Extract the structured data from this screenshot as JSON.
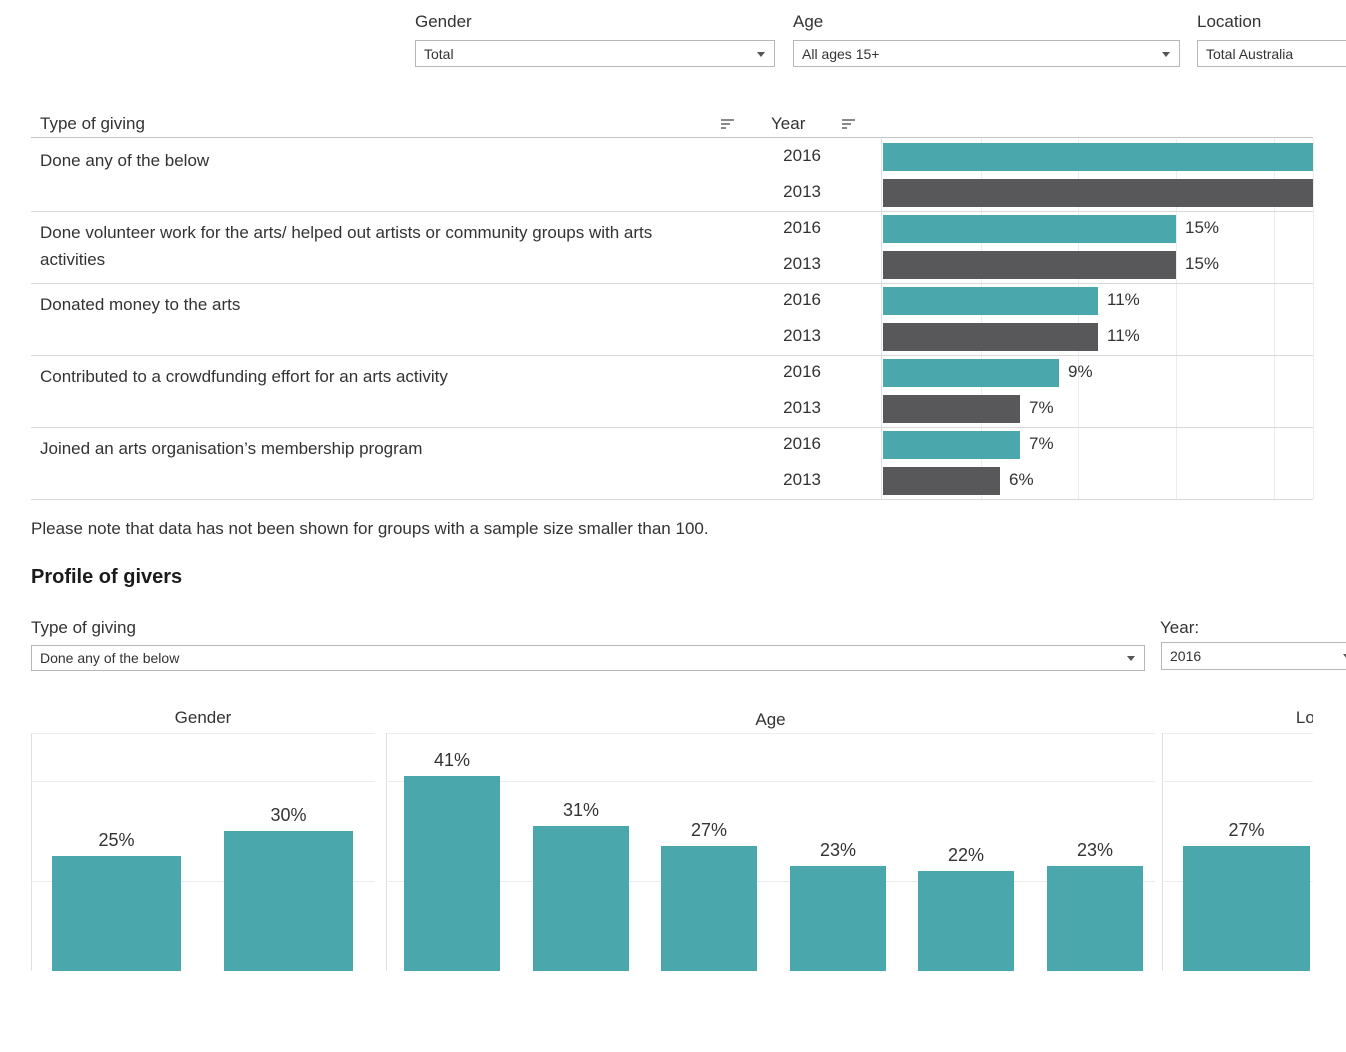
{
  "colors": {
    "teal": "#4AA8AD",
    "dark_grey": "#58585A",
    "text": "#333333",
    "gridline": "#ECECEC",
    "separator": "#D9D9D9",
    "header_line": "#C4C4C4",
    "select_border": "#B7B7B7"
  },
  "filters_top": {
    "gender": {
      "label": "Gender",
      "value": "Total"
    },
    "age": {
      "label": "Age",
      "value": "All ages 15+"
    },
    "location": {
      "label": "Location",
      "value": "Total Australia"
    }
  },
  "note": "Please note that data has not been shown for groups with a sample size smaller than 100.",
  "profile": {
    "heading": "Profile of givers",
    "type_of_giving": {
      "label": "Type of giving",
      "value": "Done any of the below"
    },
    "year": {
      "label": "Year:",
      "value": "2016"
    }
  },
  "chart_data": [
    {
      "id": "giving-by-type",
      "type": "bar",
      "orientation": "horizontal",
      "category_header": "Type of giving",
      "series_header": "Year",
      "series_names": [
        "2016",
        "2013"
      ],
      "series_colors": [
        "#4AA8AD",
        "#58585A"
      ],
      "x_axis": {
        "visible_max_percent": 22,
        "gridlines_percent": [
          5,
          10,
          15,
          20
        ],
        "tick_labels_shown": false
      },
      "rows": [
        {
          "category": "Done any of the below",
          "values": {
            "2016": null,
            "2013": null
          },
          "labels": {
            "2016": "",
            "2013": ""
          },
          "bars_clipped_at_right": true
        },
        {
          "category": "Done volunteer work for the arts/ helped out artists or community groups with arts activities",
          "values": {
            "2016": 15,
            "2013": 15
          },
          "labels": {
            "2016": "15%",
            "2013": "15%"
          }
        },
        {
          "category": "Donated money to the arts",
          "values": {
            "2016": 11,
            "2013": 11
          },
          "labels": {
            "2016": "11%",
            "2013": "11%"
          }
        },
        {
          "category": "Contributed to a crowdfunding effort for an arts activity",
          "values": {
            "2016": 9,
            "2013": 7
          },
          "labels": {
            "2016": "9%",
            "2013": "7%"
          }
        },
        {
          "category": "Joined an arts organisation’s membership program",
          "values": {
            "2016": 7,
            "2013": 6
          },
          "labels": {
            "2016": "7%",
            "2013": "6%"
          }
        }
      ]
    },
    {
      "id": "gender-profile",
      "type": "bar",
      "title": "Gender",
      "values": [
        25,
        30
      ],
      "labels": [
        "25%",
        "30%"
      ],
      "category_labels_shown": false,
      "y_gridlines_percent": [
        20,
        40
      ],
      "bottom_clipped": true
    },
    {
      "id": "age-profile",
      "type": "bar",
      "title": "Age",
      "values": [
        41,
        31,
        27,
        23,
        22,
        23
      ],
      "labels": [
        "41%",
        "31%",
        "27%",
        "23%",
        "22%",
        "23%"
      ],
      "category_labels_shown": false,
      "y_gridlines_percent": [
        20,
        40
      ],
      "bottom_clipped": true
    },
    {
      "id": "location-profile",
      "type": "bar",
      "title": "Location",
      "title_clipped_to": "Lo",
      "values": [
        27
      ],
      "labels": [
        "27%"
      ],
      "category_labels_shown": false,
      "y_gridlines_percent": [
        20,
        40
      ],
      "bottom_clipped": true,
      "right_clipped": true
    }
  ]
}
